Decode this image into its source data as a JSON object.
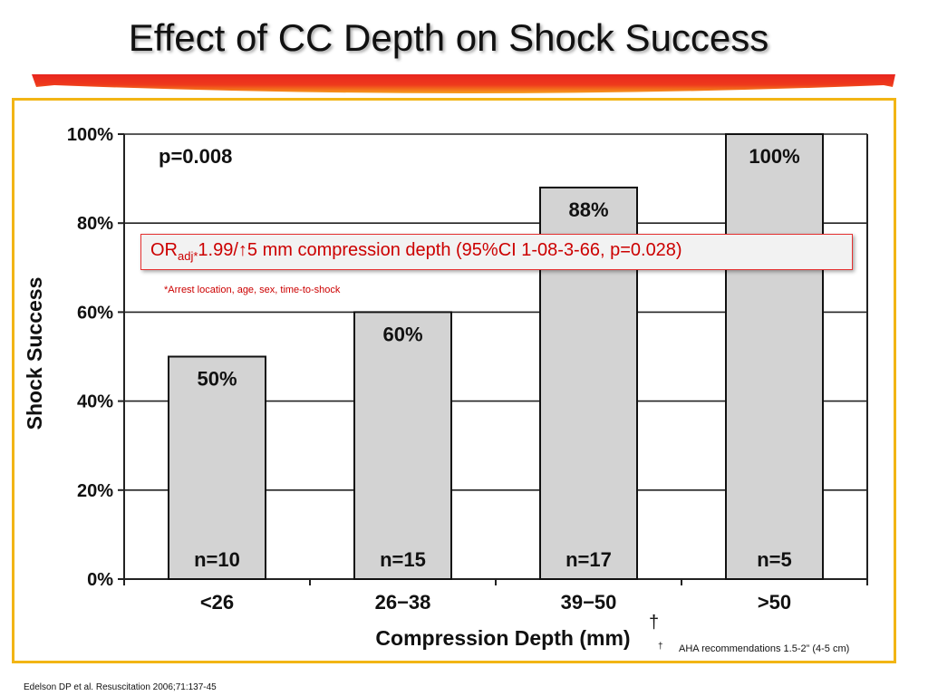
{
  "slide": {
    "title": "Effect of CC Depth on Shock Success",
    "or_label": "OR",
    "or_sub": "adj*",
    "or_text": "1.99/↑5 mm compression depth (95%CI 1-08-3-66, p=0.028)",
    "adj_footnote": "*Arrest location, age, sex, time-to-shock",
    "dagger": "†",
    "dagger_small": "†",
    "aha_note": "AHA recommendations 1.5-2” (4-5 cm)",
    "citation": "Edelson DP et al.  Resuscitation 2006;71:137-45"
  },
  "colors": {
    "bar_fill": "#d3d3d3",
    "bar_stroke": "#111111",
    "frame": "#f2b515",
    "accent_red": "#e8251f",
    "accent_orange": "#f7a01c"
  },
  "chart_data": {
    "type": "bar",
    "title": "",
    "xlabel": "Compression Depth (mm)",
    "ylabel": "Shock Success",
    "categories": [
      "<26",
      "26−38",
      "39−50",
      ">50"
    ],
    "values": [
      50,
      60,
      88,
      100
    ],
    "value_labels": [
      "50%",
      "60%",
      "88%",
      "100%"
    ],
    "n_labels": [
      "n=10",
      "n=15",
      "n=17",
      "n=5"
    ],
    "ylim": [
      0,
      100
    ],
    "yticks": [
      0,
      20,
      40,
      60,
      80,
      100
    ],
    "ytick_labels": [
      "0%",
      "20%",
      "40%",
      "60%",
      "80%",
      "100%"
    ],
    "grid": true,
    "annotation": "p=0.008"
  }
}
